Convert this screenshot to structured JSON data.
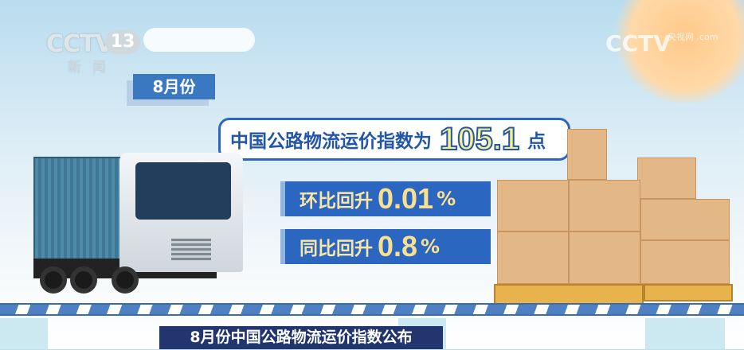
{
  "channel": {
    "logo": "CCTV",
    "number": "13",
    "subtitle": "新闻",
    "watermark": "CCTV",
    "watermark_sub": "央视网 .com"
  },
  "month_label": "8月份",
  "headline": {
    "prefix": "中国公路物流运价指数为",
    "value": "105.1",
    "unit": "点"
  },
  "stats": [
    {
      "label": "环比回升",
      "value": "0.01",
      "unit": "%"
    },
    {
      "label": "同比回升",
      "value": "0.8",
      "unit": "%"
    }
  ],
  "caption": "8月份中国公路物流运价指数公布",
  "colors": {
    "primary_blue": "#2b66c0",
    "highlight_yellow": "#f6f08a",
    "caption_bg": "#23356e"
  }
}
